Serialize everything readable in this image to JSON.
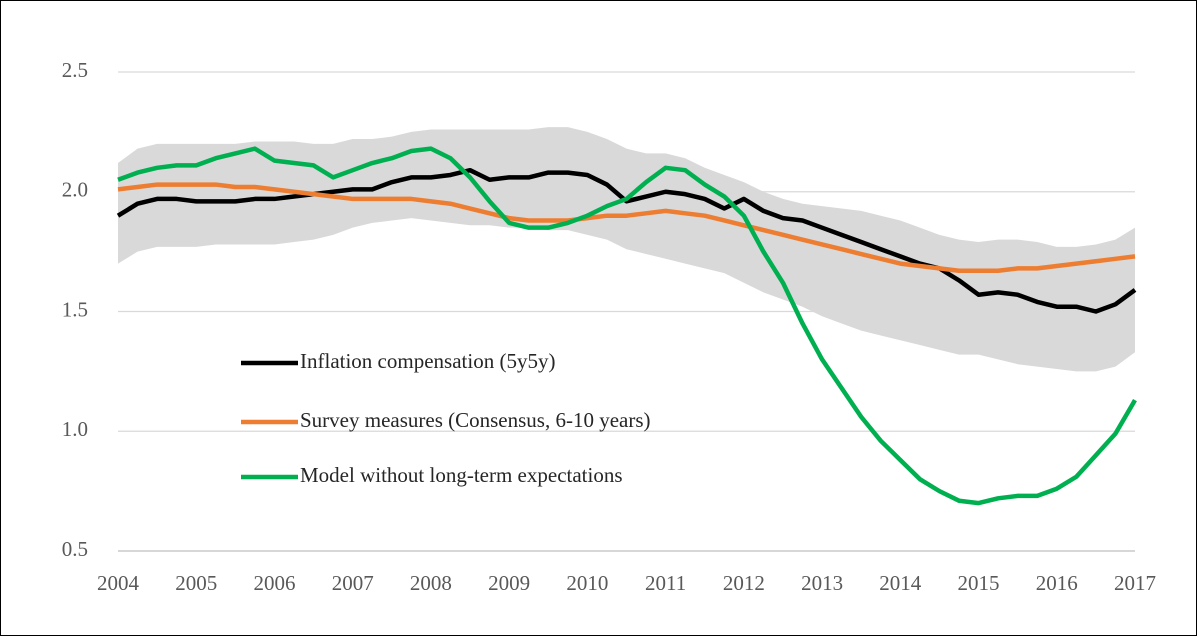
{
  "chart_data": {
    "type": "line",
    "x": [
      2004,
      2004.25,
      2004.5,
      2004.75,
      2005,
      2005.25,
      2005.5,
      2005.75,
      2006,
      2006.25,
      2006.5,
      2006.75,
      2007,
      2007.25,
      2007.5,
      2007.75,
      2008,
      2008.25,
      2008.5,
      2008.75,
      2009,
      2009.25,
      2009.5,
      2009.75,
      2010,
      2010.25,
      2010.5,
      2010.75,
      2011,
      2011.25,
      2011.5,
      2011.75,
      2012,
      2012.25,
      2012.5,
      2012.75,
      2013,
      2013.25,
      2013.5,
      2013.75,
      2014,
      2014.25,
      2014.5,
      2014.75,
      2015,
      2015.25,
      2015.5,
      2015.75,
      2016,
      2016.25,
      2016.5,
      2016.75,
      2017
    ],
    "band": {
      "color": "#d9d9d9",
      "upper": [
        2.12,
        2.18,
        2.2,
        2.2,
        2.2,
        2.2,
        2.2,
        2.21,
        2.21,
        2.21,
        2.2,
        2.2,
        2.22,
        2.22,
        2.23,
        2.25,
        2.26,
        2.26,
        2.26,
        2.26,
        2.26,
        2.26,
        2.27,
        2.27,
        2.25,
        2.22,
        2.18,
        2.16,
        2.16,
        2.14,
        2.1,
        2.07,
        2.04,
        2.0,
        1.97,
        1.95,
        1.94,
        1.93,
        1.92,
        1.9,
        1.88,
        1.85,
        1.82,
        1.8,
        1.79,
        1.8,
        1.8,
        1.79,
        1.77,
        1.77,
        1.78,
        1.8,
        1.85
      ],
      "lower": [
        1.7,
        1.75,
        1.77,
        1.77,
        1.77,
        1.78,
        1.78,
        1.78,
        1.78,
        1.79,
        1.8,
        1.82,
        1.85,
        1.87,
        1.88,
        1.89,
        1.88,
        1.87,
        1.86,
        1.86,
        1.85,
        1.85,
        1.84,
        1.84,
        1.82,
        1.8,
        1.76,
        1.74,
        1.72,
        1.7,
        1.68,
        1.66,
        1.62,
        1.58,
        1.55,
        1.52,
        1.48,
        1.45,
        1.42,
        1.4,
        1.38,
        1.36,
        1.34,
        1.32,
        1.32,
        1.3,
        1.28,
        1.27,
        1.26,
        1.25,
        1.25,
        1.27,
        1.33
      ]
    },
    "series": [
      {
        "name": "Inflation compensation (5y5y)",
        "color": "#000000",
        "values": [
          1.9,
          1.95,
          1.97,
          1.97,
          1.96,
          1.96,
          1.96,
          1.97,
          1.97,
          1.98,
          1.99,
          2.0,
          2.01,
          2.01,
          2.04,
          2.06,
          2.06,
          2.07,
          2.09,
          2.05,
          2.06,
          2.06,
          2.08,
          2.08,
          2.07,
          2.03,
          1.96,
          1.98,
          2.0,
          1.99,
          1.97,
          1.93,
          1.97,
          1.92,
          1.89,
          1.88,
          1.85,
          1.82,
          1.79,
          1.76,
          1.73,
          1.7,
          1.68,
          1.63,
          1.57,
          1.58,
          1.57,
          1.54,
          1.52,
          1.52,
          1.5,
          1.53,
          1.59
        ]
      },
      {
        "name": "Survey measures (Consensus, 6-10 years)",
        "color": "#ed7d31",
        "values": [
          2.01,
          2.02,
          2.03,
          2.03,
          2.03,
          2.03,
          2.02,
          2.02,
          2.01,
          2.0,
          1.99,
          1.98,
          1.97,
          1.97,
          1.97,
          1.97,
          1.96,
          1.95,
          1.93,
          1.91,
          1.89,
          1.88,
          1.88,
          1.88,
          1.89,
          1.9,
          1.9,
          1.91,
          1.92,
          1.91,
          1.9,
          1.88,
          1.86,
          1.84,
          1.82,
          1.8,
          1.78,
          1.76,
          1.74,
          1.72,
          1.7,
          1.69,
          1.68,
          1.67,
          1.67,
          1.67,
          1.68,
          1.68,
          1.69,
          1.7,
          1.71,
          1.72,
          1.73
        ]
      },
      {
        "name": "Model without long-term expectations",
        "color": "#00b050",
        "values": [
          2.05,
          2.08,
          2.1,
          2.11,
          2.11,
          2.14,
          2.16,
          2.18,
          2.13,
          2.12,
          2.11,
          2.06,
          2.09,
          2.12,
          2.14,
          2.17,
          2.18,
          2.14,
          2.06,
          1.96,
          1.87,
          1.85,
          1.85,
          1.87,
          1.9,
          1.94,
          1.97,
          2.04,
          2.1,
          2.09,
          2.03,
          1.98,
          1.9,
          1.75,
          1.62,
          1.45,
          1.3,
          1.18,
          1.06,
          0.96,
          0.88,
          0.8,
          0.75,
          0.71,
          0.7,
          0.72,
          0.73,
          0.73,
          0.76,
          0.81,
          0.9,
          0.99,
          1.13
        ]
      }
    ],
    "xlim": [
      2004,
      2017
    ],
    "xticks": [
      2004,
      2005,
      2006,
      2007,
      2008,
      2009,
      2010,
      2011,
      2012,
      2013,
      2014,
      2015,
      2016,
      2017
    ],
    "ylim": [
      0.5,
      2.5
    ],
    "yticks": [
      0.5,
      {
        "value": 1,
        "label": "1.0"
      },
      1.5,
      {
        "value": 2,
        "label": "2.0"
      },
      2.5
    ],
    "grid": true
  }
}
